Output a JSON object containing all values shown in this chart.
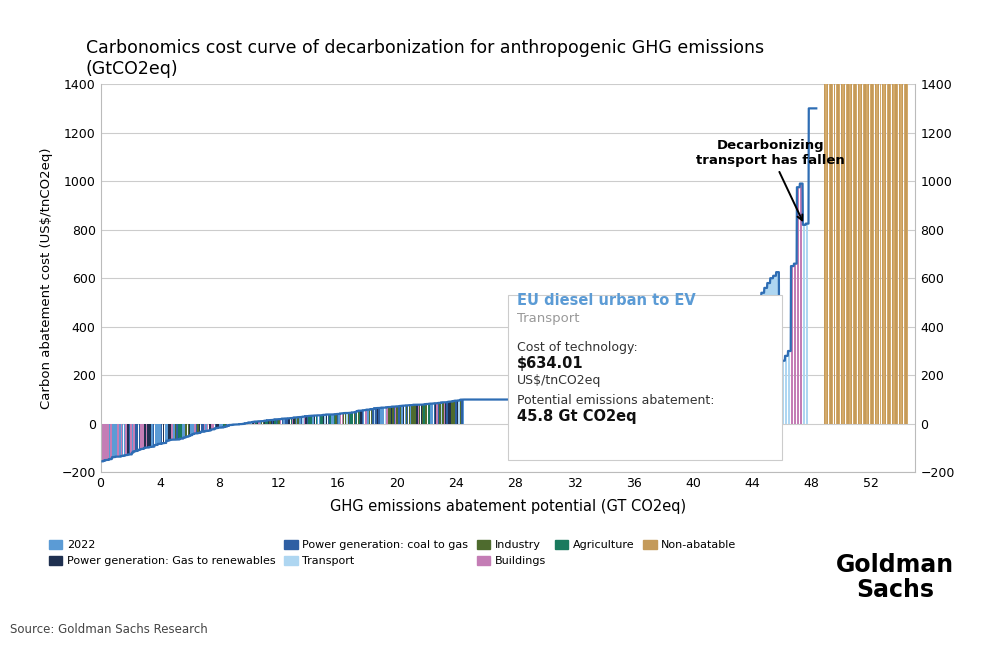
{
  "title": "Carbonomics cost curve of decarbonization for anthropogenic GHG emissions\n(GtCO2eq)",
  "xlabel": "GHG emissions abatement potential (GT CO2eq)",
  "ylabel": "Carbon abatement cost (US$/tnCO2eq)",
  "ylim": [
    -200,
    1400
  ],
  "xlim": [
    0,
    55
  ],
  "xticks": [
    0,
    4,
    8,
    12,
    16,
    20,
    24,
    28,
    32,
    36,
    40,
    44,
    48,
    52
  ],
  "yticks": [
    -200,
    0,
    200,
    400,
    600,
    800,
    1000,
    1200,
    1400
  ],
  "source": "Source: Goldman Sachs Research",
  "legend_items": [
    {
      "label": "2022",
      "color": "#5B9BD5"
    },
    {
      "label": "Power generation: Gas to renewables",
      "color": "#1F3050"
    },
    {
      "label": "Power generation: coal to gas",
      "color": "#2E5FA3"
    },
    {
      "label": "Transport",
      "color": "#AED6F1"
    },
    {
      "label": "Industry",
      "color": "#4E6B2E"
    },
    {
      "label": "Buildings",
      "color": "#C47DB5"
    },
    {
      "label": "Agriculture",
      "color": "#1A7A5E"
    },
    {
      "label": "Non-abatable",
      "color": "#C49A5A"
    }
  ],
  "annotation_text": "Decarbonizing\ntransport has fallen",
  "tooltip_title": "EU diesel urban to EV",
  "tooltip_subtitle": "Transport",
  "tooltip_cost_label": "Cost of technology:",
  "tooltip_cost_value": "$634.01",
  "tooltip_cost_unit": "US$/tnCO2eq",
  "tooltip_abatement_label": "Potential emissions abatement:",
  "tooltip_abatement_value": "45.8 Gt CO2eq",
  "background_color": "#FFFFFF",
  "grid_color": "#CCCCCC",
  "curve_color": "#2E6DB4",
  "goldman_sachs_text": "Goldman\nSachs"
}
